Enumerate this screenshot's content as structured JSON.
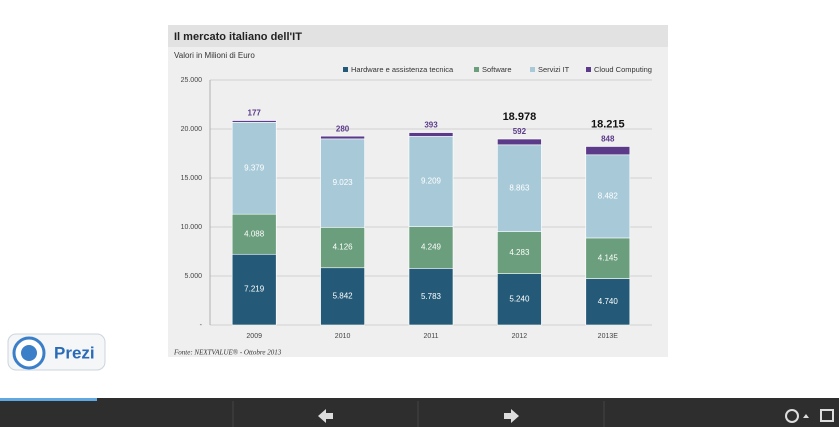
{
  "chart_data": {
    "type": "stacked-bar",
    "title": "Il mercato italiano dell'IT",
    "subtitle": "Valori in Milioni di Euro",
    "source": "Fonte: NEXTVALUE® - Ottobre 2013",
    "categories": [
      "2009",
      "2010",
      "2011",
      "2012",
      "2013E"
    ],
    "series": [
      {
        "name": "Hardware e assistenza tecnica",
        "color": "#245a78",
        "values": [
          7219,
          5842,
          5783,
          5240,
          4740
        ],
        "value_labels": [
          "7.219",
          "5.842",
          "5.783",
          "5.240",
          "4.740"
        ]
      },
      {
        "name": "Software",
        "color": "#6a9e7c",
        "values": [
          4088,
          4126,
          4249,
          4283,
          4145
        ],
        "value_labels": [
          "4.088",
          "4.126",
          "4.249",
          "4.283",
          "4.145"
        ]
      },
      {
        "name": "Servizi IT",
        "color": "#a8cad8",
        "values": [
          9379,
          9023,
          9209,
          8863,
          8482
        ],
        "value_labels": [
          "9.379",
          "9.023",
          "9.209",
          "8.863",
          "8.482"
        ]
      },
      {
        "name": "Cloud Computing",
        "color": "#5b3a8a",
        "values": [
          177,
          280,
          393,
          592,
          848
        ],
        "value_labels": [
          "177",
          "280",
          "393",
          "592",
          "848"
        ]
      }
    ],
    "annotations": [
      {
        "x": "2012",
        "value": 18978,
        "label": "18.978"
      },
      {
        "x": "2013E",
        "value": 18215,
        "label": "18.215"
      }
    ],
    "ylim": [
      0,
      25000
    ],
    "yticks": [
      {
        "value": 0,
        "label": "-"
      },
      {
        "value": 5000,
        "label": "5.000"
      },
      {
        "value": 10000,
        "label": "10.000"
      },
      {
        "value": 15000,
        "label": "15.000"
      },
      {
        "value": 20000,
        "label": "20.000"
      },
      {
        "value": 25000,
        "label": "25.000"
      }
    ],
    "grid": true
  },
  "app": {
    "logo": "Prezi"
  }
}
